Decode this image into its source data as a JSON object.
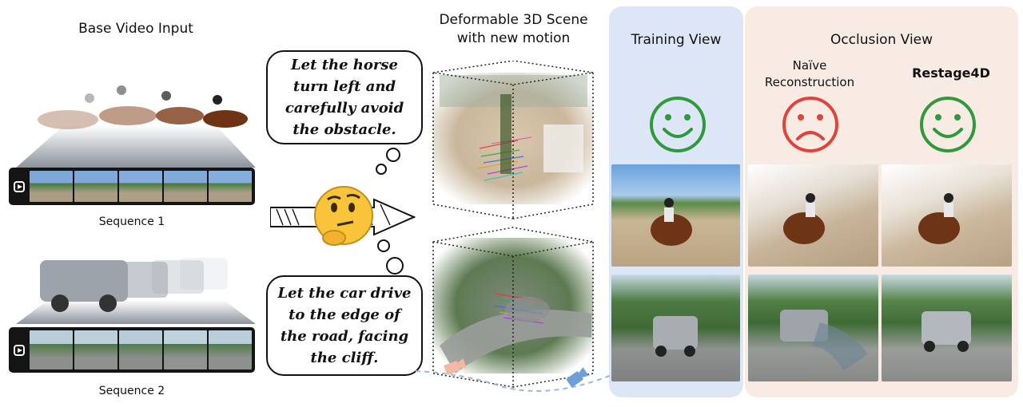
{
  "left": {
    "title": "Base Video Input",
    "sequence1_caption": "Sequence 1",
    "sequence2_caption": "Sequence 2"
  },
  "prompts": {
    "horse": "Let the horse turn left and carefully avoid the obstacle.",
    "car": "Let the car drive to the edge of the road, facing the cliff."
  },
  "middle": {
    "title_line1": "Deformable 3D Scene",
    "title_line2": "with new motion"
  },
  "training_view": {
    "title": "Training View",
    "face": "happy"
  },
  "occlusion_view": {
    "title": "Occlusion View",
    "naive_label": "Naïve Reconstruction",
    "naive_face": "sad",
    "method_label": "Restage4D",
    "method_face": "happy"
  },
  "colors": {
    "training_panel": "#dde6f7",
    "occlusion_panel": "#f8ebe4",
    "happy_face": "#2e9a3c",
    "sad_face": "#e0433a"
  }
}
